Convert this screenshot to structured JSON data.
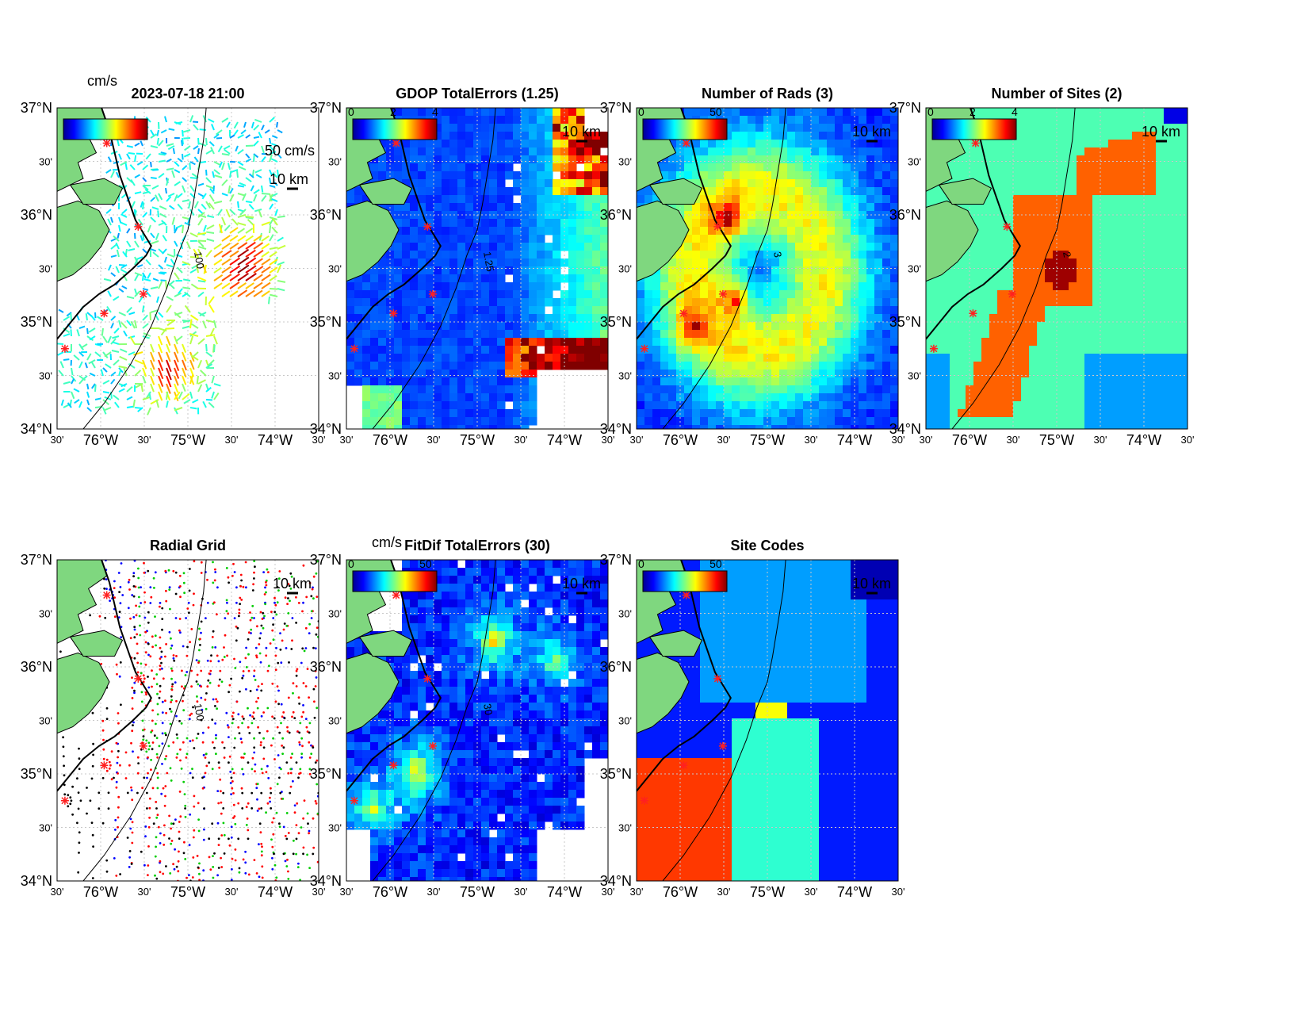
{
  "colors": {
    "land": "#7fd77f",
    "grid": "#c8c8c8",
    "site": "#ff2020"
  },
  "ticks": {
    "lat_major": [
      "37°N",
      "36°N",
      "35°N",
      "34°N"
    ],
    "lat_minor": "30'",
    "lon_major": [
      "76°W",
      "75°W",
      "74°W"
    ],
    "lon_minor": "30'"
  },
  "panels": [
    {
      "id": "velocity",
      "title": "2023-07-18 21:00",
      "cb_unit": "cm/s",
      "cb_ticks": [],
      "scale_vec": "50 cm/s",
      "scale_km": "10 km",
      "contour": "100",
      "kind": "velocity"
    },
    {
      "id": "gdop",
      "title": "GDOP TotalErrors (1.25)",
      "cb_unit": "",
      "cb_ticks": [
        "0",
        "2",
        "4"
      ],
      "scale_vec": "",
      "scale_km": "10 km",
      "contour": "1.25",
      "kind": "gdop"
    },
    {
      "id": "nrads",
      "title": "Number of Rads (3)",
      "cb_unit": "",
      "cb_ticks": [
        "0",
        "50"
      ],
      "scale_vec": "",
      "scale_km": "10 km",
      "contour": "3",
      "kind": "nrads"
    },
    {
      "id": "nsites",
      "title": "Number of Sites (2)",
      "cb_unit": "",
      "cb_ticks": [
        "0",
        "2",
        "4"
      ],
      "scale_vec": "",
      "scale_km": "10 km",
      "contour": "2",
      "kind": "nsites"
    },
    {
      "id": "radialgrid",
      "title": "Radial Grid",
      "cb_unit": "",
      "cb_ticks": [],
      "scale_vec": "",
      "scale_km": "10 km",
      "contour": "100",
      "kind": "radial"
    },
    {
      "id": "fitdif",
      "title": "FitDif TotalErrors (30)",
      "cb_unit": "cm/s",
      "cb_ticks": [
        "0",
        "50"
      ],
      "scale_vec": "",
      "scale_km": "10 km",
      "contour": "30",
      "kind": "fitdif"
    },
    {
      "id": "sitecodes",
      "title": "Site Codes",
      "cb_unit": "",
      "cb_ticks": [
        "0",
        "50"
      ],
      "scale_vec": "",
      "scale_km": "10 km",
      "contour": "",
      "kind": "sitecodes"
    }
  ]
}
